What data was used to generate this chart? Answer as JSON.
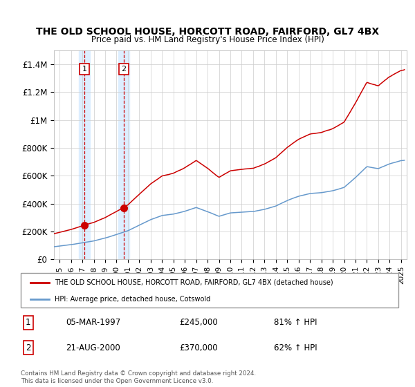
{
  "title": "THE OLD SCHOOL HOUSE, HORCOTT ROAD, FAIRFORD, GL7 4BX",
  "subtitle": "Price paid vs. HM Land Registry's House Price Index (HPI)",
  "legend_line1": "THE OLD SCHOOL HOUSE, HORCOTT ROAD, FAIRFORD, GL7 4BX (detached house)",
  "legend_line2": "HPI: Average price, detached house, Cotswold",
  "transaction1_date": "05-MAR-1997",
  "transaction1_price": "£245,000",
  "transaction1_hpi": "81% ↑ HPI",
  "transaction1_year": 1997.17,
  "transaction1_value": 245000,
  "transaction2_date": "21-AUG-2000",
  "transaction2_price": "£370,000",
  "transaction2_hpi": "62% ↑ HPI",
  "transaction2_year": 2000.63,
  "transaction2_value": 370000,
  "hpi_color": "#6699cc",
  "price_color": "#cc0000",
  "dot_color": "#cc0000",
  "vline_color": "#cc0000",
  "shade_color": "#ddeeff",
  "grid_color": "#cccccc",
  "background_color": "#ffffff",
  "ylim": [
    0,
    1500000
  ],
  "yticks": [
    0,
    200000,
    400000,
    600000,
    800000,
    1000000,
    1200000,
    1400000
  ],
  "ytick_labels": [
    "£0",
    "£200K",
    "£400K",
    "£600K",
    "£800K",
    "£1M",
    "£1.2M",
    "£1.4M"
  ],
  "xlim_start": 1994.5,
  "xlim_end": 2025.5,
  "footer": "Contains HM Land Registry data © Crown copyright and database right 2024.\nThis data is licensed under the Open Government Licence v3.0.",
  "box_color": "#cc0000",
  "hpi_key_years": [
    1994.5,
    1995,
    1996,
    1997,
    1998,
    1999,
    2000,
    2001,
    2002,
    2003,
    2004,
    2005,
    2006,
    2007,
    2008,
    2009,
    2010,
    2011,
    2012,
    2013,
    2014,
    2015,
    2016,
    2017,
    2018,
    2019,
    2020,
    2021,
    2022,
    2023,
    2024,
    2025,
    2025.5
  ],
  "hpi_key_vals": [
    90000,
    95000,
    105000,
    118000,
    132000,
    152000,
    178000,
    205000,
    245000,
    285000,
    315000,
    325000,
    345000,
    372000,
    342000,
    308000,
    332000,
    338000,
    342000,
    358000,
    382000,
    422000,
    452000,
    472000,
    478000,
    492000,
    515000,
    585000,
    662000,
    648000,
    682000,
    705000,
    710000
  ]
}
